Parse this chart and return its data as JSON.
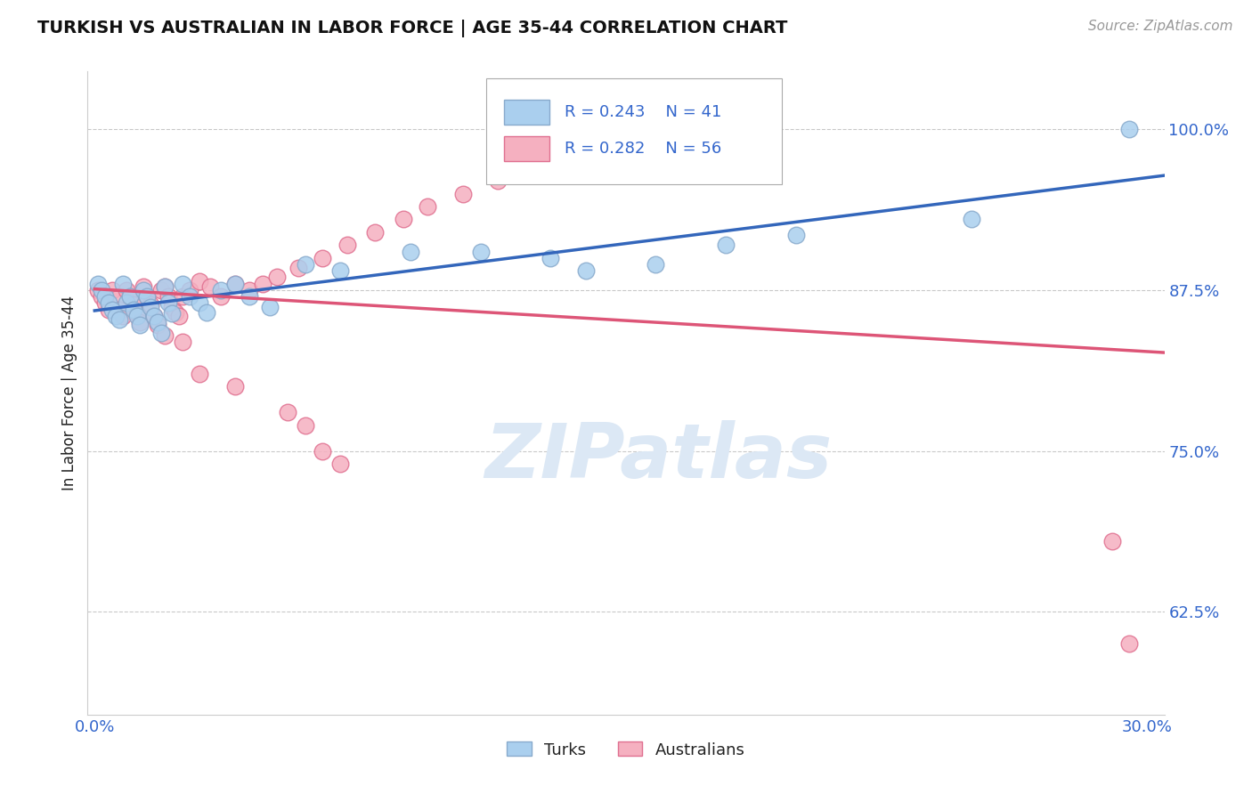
{
  "title": "TURKISH VS AUSTRALIAN IN LABOR FORCE | AGE 35-44 CORRELATION CHART",
  "source": "Source: ZipAtlas.com",
  "ylabel": "In Labor Force | Age 35-44",
  "xlim": [
    -0.002,
    0.305
  ],
  "ylim": [
    0.545,
    1.045
  ],
  "xtick_positions": [
    0.0,
    0.05,
    0.1,
    0.15,
    0.2,
    0.25,
    0.3
  ],
  "xticklabels": [
    "0.0%",
    "",
    "",
    "",
    "",
    "",
    "30.0%"
  ],
  "ytick_positions": [
    0.625,
    0.75,
    0.875,
    1.0
  ],
  "ytick_labels": [
    "62.5%",
    "75.0%",
    "87.5%",
    "100.0%"
  ],
  "turks_color": "#aacfee",
  "turks_edge_color": "#88aacc",
  "australians_color": "#f5b0c0",
  "australians_edge_color": "#e07090",
  "trend_turks_color": "#3366bb",
  "trend_australians_color": "#dd5577",
  "grid_color": "#bbbbbb",
  "title_color": "#111111",
  "axis_label_color": "#222222",
  "tick_label_color": "#3366cc",
  "legend_text_color": "#3366cc",
  "watermark_color": "#dce8f5",
  "background_color": "#ffffff",
  "legend_r_turks": "R = 0.243",
  "legend_n_turks": "N = 41",
  "legend_r_australians": "R = 0.282",
  "legend_n_australians": "N = 56",
  "legend_label_turks": "Turks",
  "legend_label_australians": "Australians",
  "turks_x": [
    0.001,
    0.002,
    0.003,
    0.004,
    0.005,
    0.006,
    0.007,
    0.008,
    0.009,
    0.01,
    0.011,
    0.012,
    0.013,
    0.014,
    0.015,
    0.016,
    0.017,
    0.018,
    0.019,
    0.02,
    0.021,
    0.022,
    0.025,
    0.027,
    0.03,
    0.032,
    0.036,
    0.04,
    0.044,
    0.05,
    0.06,
    0.07,
    0.09,
    0.11,
    0.13,
    0.14,
    0.16,
    0.18,
    0.2,
    0.25,
    0.295
  ],
  "turks_y": [
    0.88,
    0.875,
    0.87,
    0.865,
    0.86,
    0.855,
    0.852,
    0.88,
    0.865,
    0.87,
    0.86,
    0.855,
    0.848,
    0.875,
    0.87,
    0.862,
    0.855,
    0.85,
    0.842,
    0.878,
    0.865,
    0.857,
    0.88,
    0.87,
    0.865,
    0.858,
    0.875,
    0.88,
    0.87,
    0.862,
    0.895,
    0.89,
    0.905,
    0.905,
    0.9,
    0.89,
    0.895,
    0.91,
    0.918,
    0.93,
    1.0
  ],
  "australians_x": [
    0.001,
    0.002,
    0.003,
    0.004,
    0.005,
    0.006,
    0.007,
    0.008,
    0.009,
    0.01,
    0.011,
    0.012,
    0.013,
    0.014,
    0.015,
    0.016,
    0.017,
    0.018,
    0.019,
    0.02,
    0.021,
    0.022,
    0.023,
    0.024,
    0.025,
    0.027,
    0.03,
    0.033,
    0.036,
    0.04,
    0.044,
    0.048,
    0.052,
    0.058,
    0.065,
    0.072,
    0.08,
    0.088,
    0.095,
    0.105,
    0.115,
    0.125,
    0.135,
    0.145,
    0.16,
    0.175,
    0.02,
    0.025,
    0.03,
    0.04,
    0.055,
    0.06,
    0.065,
    0.07,
    0.29,
    0.295
  ],
  "australians_y": [
    0.875,
    0.87,
    0.865,
    0.86,
    0.875,
    0.868,
    0.86,
    0.855,
    0.875,
    0.87,
    0.864,
    0.857,
    0.85,
    0.878,
    0.87,
    0.864,
    0.855,
    0.848,
    0.875,
    0.878,
    0.87,
    0.862,
    0.858,
    0.855,
    0.87,
    0.875,
    0.882,
    0.878,
    0.87,
    0.88,
    0.875,
    0.88,
    0.885,
    0.892,
    0.9,
    0.91,
    0.92,
    0.93,
    0.94,
    0.95,
    0.96,
    0.965,
    0.97,
    0.98,
    0.99,
    1.0,
    0.84,
    0.835,
    0.81,
    0.8,
    0.78,
    0.77,
    0.75,
    0.74,
    0.68,
    0.6
  ]
}
